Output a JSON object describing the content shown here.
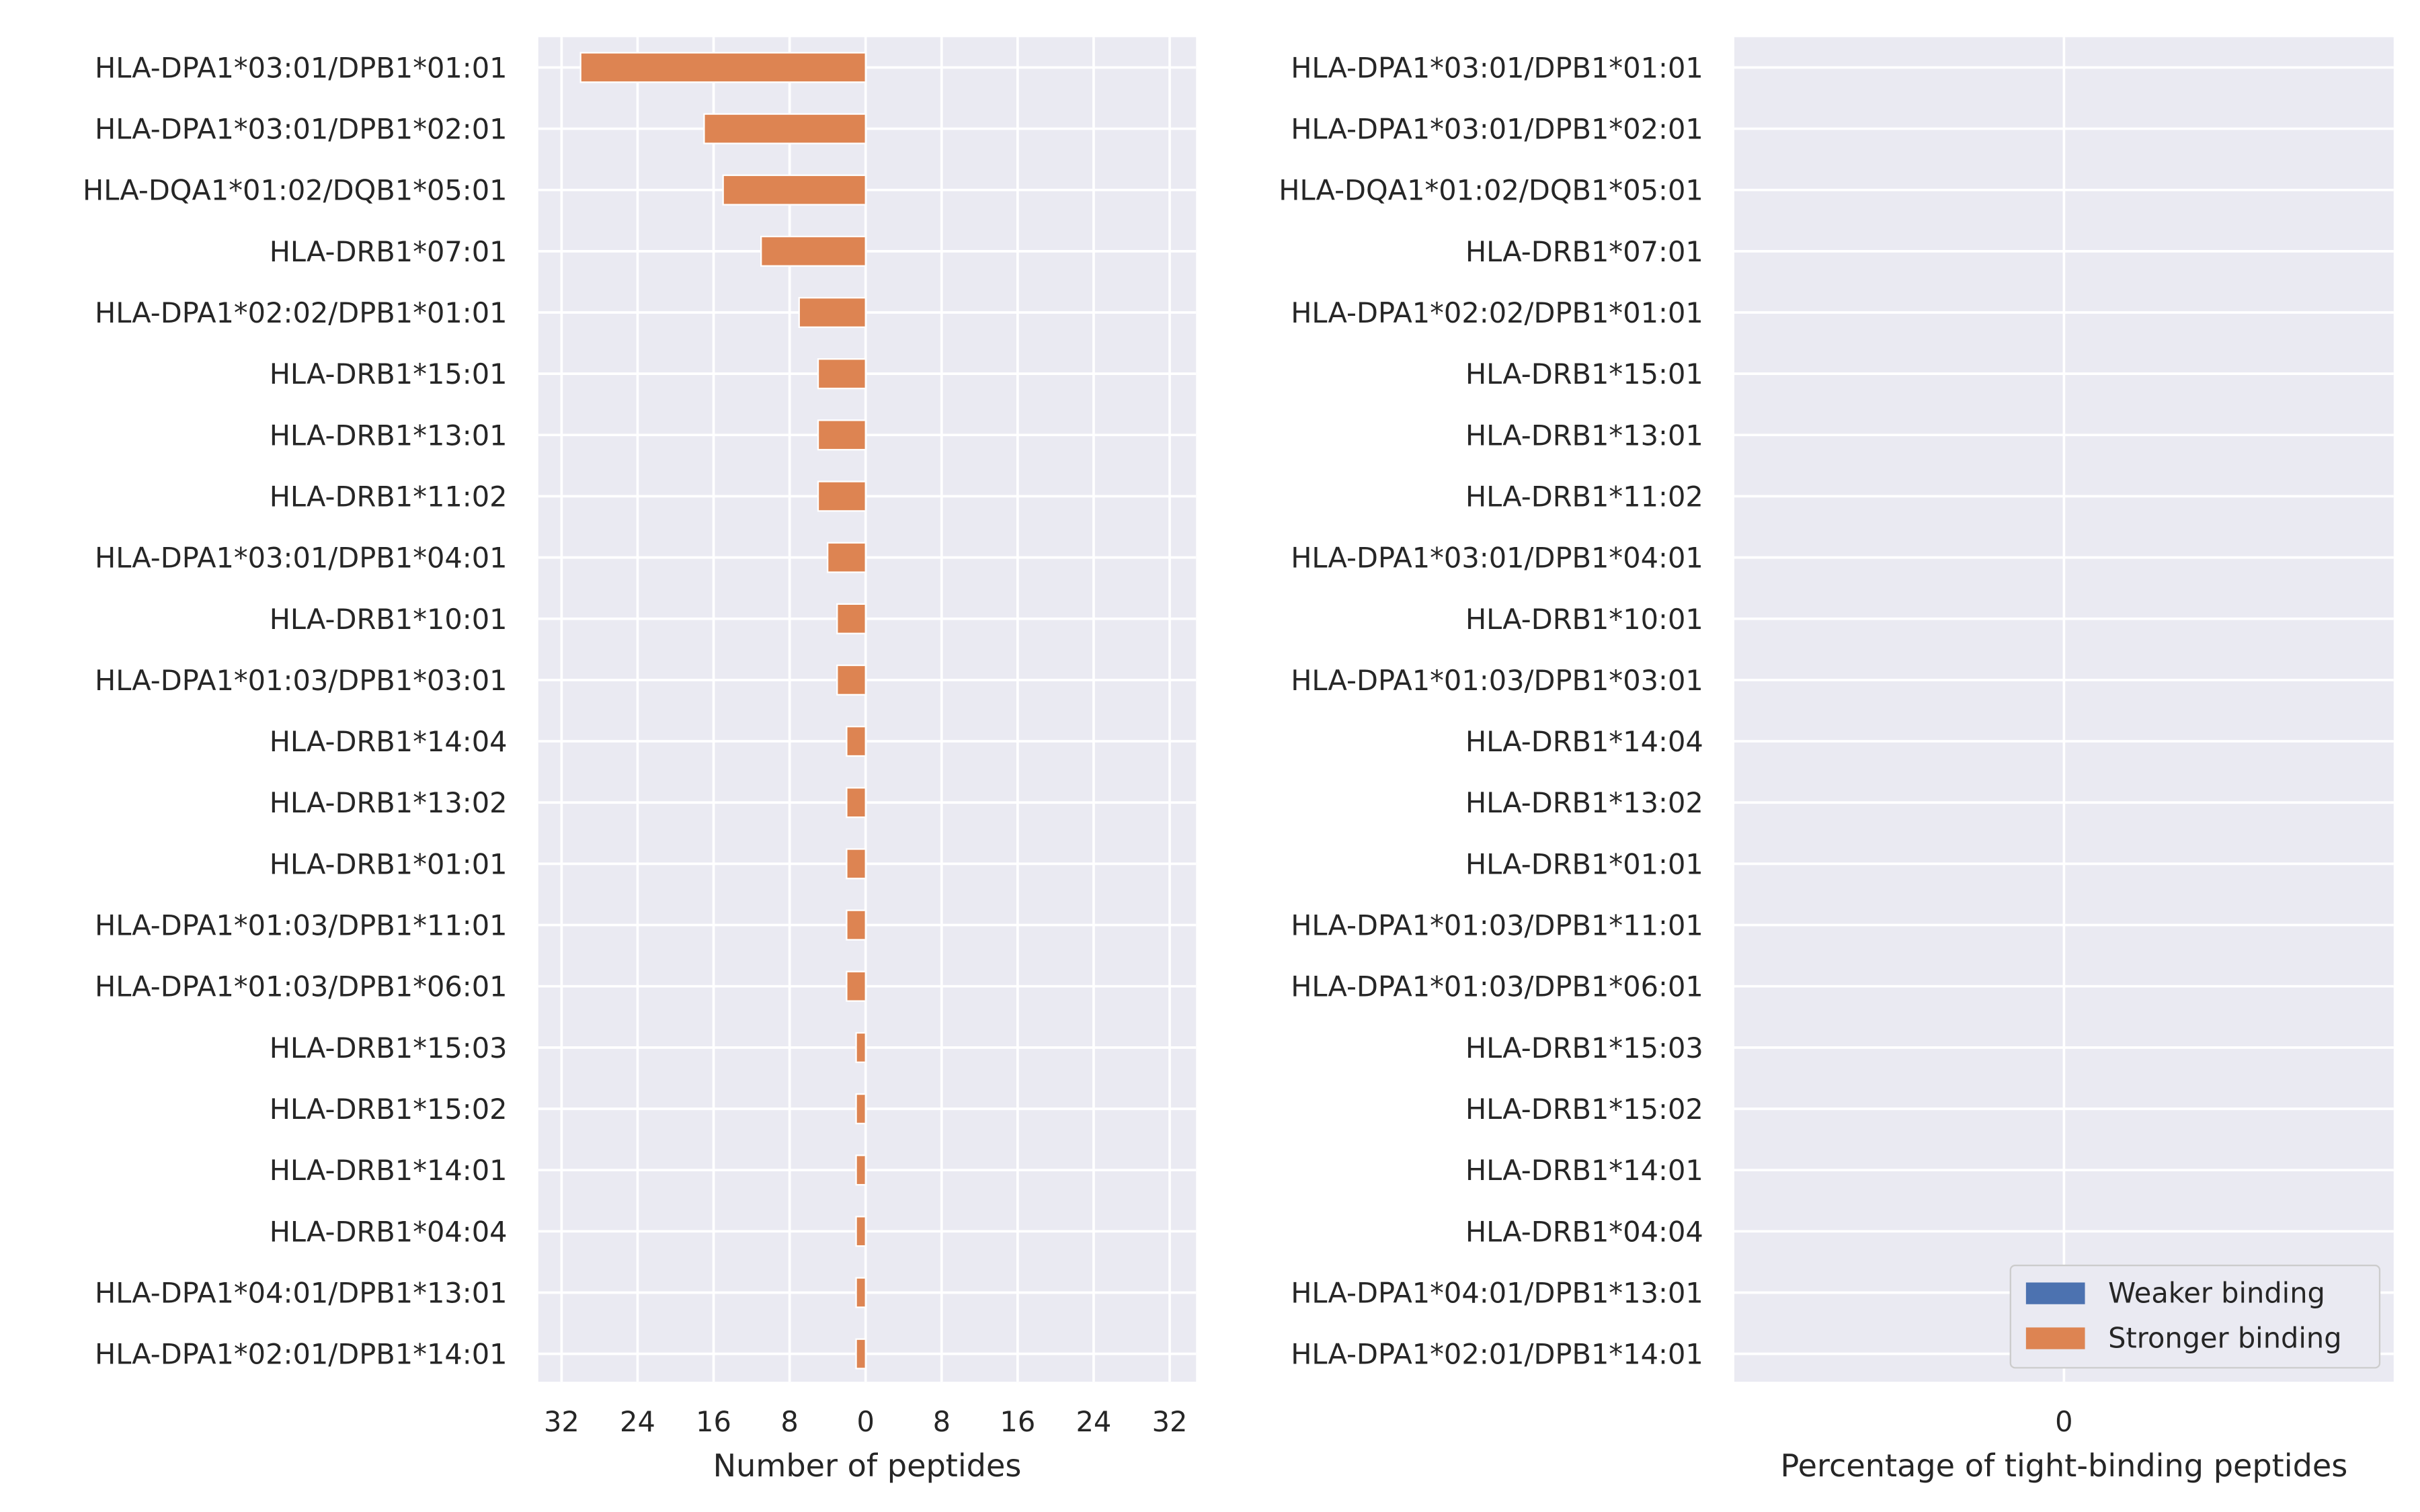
{
  "chart_data": [
    {
      "type": "bar",
      "orientation": "horizontal",
      "categories": [
        "HLA-DPA1*03:01/DPB1*01:01",
        "HLA-DPA1*03:01/DPB1*02:01",
        "HLA-DQA1*01:02/DQB1*05:01",
        "HLA-DRB1*07:01",
        "HLA-DPA1*02:02/DPB1*01:01",
        "HLA-DRB1*15:01",
        "HLA-DRB1*13:01",
        "HLA-DRB1*11:02",
        "HLA-DPA1*03:01/DPB1*04:01",
        "HLA-DRB1*10:01",
        "HLA-DPA1*01:03/DPB1*03:01",
        "HLA-DRB1*14:04",
        "HLA-DRB1*13:02",
        "HLA-DRB1*01:01",
        "HLA-DPA1*01:03/DPB1*11:01",
        "HLA-DPA1*01:03/DPB1*06:01",
        "HLA-DRB1*15:03",
        "HLA-DRB1*15:02",
        "HLA-DRB1*14:01",
        "HLA-DRB1*04:04",
        "HLA-DPA1*04:01/DPB1*13:01",
        "HLA-DPA1*02:01/DPB1*14:01"
      ],
      "series": [
        {
          "name": "Weaker binding",
          "color": "#4c72b0",
          "values": [
            0,
            0,
            0,
            0,
            0,
            0,
            0,
            0,
            0,
            0,
            0,
            0,
            0,
            0,
            0,
            0,
            0,
            0,
            0,
            0,
            0,
            0
          ]
        },
        {
          "name": "Stronger binding",
          "color": "#dd8452",
          "direction": "left",
          "values": [
            30,
            17,
            15,
            11,
            7,
            5,
            5,
            5,
            4,
            3,
            3,
            2,
            2,
            2,
            2,
            2,
            1,
            1,
            1,
            1,
            1,
            1
          ]
        }
      ],
      "xticks": [
        "32",
        "24",
        "16",
        "8",
        "0",
        "8",
        "16",
        "24",
        "32"
      ],
      "xlim": [
        -35,
        35
      ],
      "xlabel": "Number of peptides",
      "ylabel": "",
      "title": "",
      "grid": true
    },
    {
      "type": "bar",
      "orientation": "horizontal",
      "categories": [
        "HLA-DPA1*03:01/DPB1*01:01",
        "HLA-DPA1*03:01/DPB1*02:01",
        "HLA-DQA1*01:02/DQB1*05:01",
        "HLA-DRB1*07:01",
        "HLA-DPA1*02:02/DPB1*01:01",
        "HLA-DRB1*15:01",
        "HLA-DRB1*13:01",
        "HLA-DRB1*11:02",
        "HLA-DPA1*03:01/DPB1*04:01",
        "HLA-DRB1*10:01",
        "HLA-DPA1*01:03/DPB1*03:01",
        "HLA-DRB1*14:04",
        "HLA-DRB1*13:02",
        "HLA-DRB1*01:01",
        "HLA-DPA1*01:03/DPB1*11:01",
        "HLA-DPA1*01:03/DPB1*06:01",
        "HLA-DRB1*15:03",
        "HLA-DRB1*15:02",
        "HLA-DRB1*14:01",
        "HLA-DRB1*04:04",
        "HLA-DPA1*04:01/DPB1*13:01",
        "HLA-DPA1*02:01/DPB1*14:01"
      ],
      "series": [
        {
          "name": "Weaker binding",
          "color": "#4c72b0",
          "values": [
            0,
            0,
            0,
            0,
            0,
            0,
            0,
            0,
            0,
            0,
            0,
            0,
            0,
            0,
            0,
            0,
            0,
            0,
            0,
            0,
            0,
            0
          ]
        },
        {
          "name": "Stronger binding",
          "color": "#dd8452",
          "values": [
            0,
            0,
            0,
            0,
            0,
            0,
            0,
            0,
            0,
            0,
            0,
            0,
            0,
            0,
            0,
            0,
            0,
            0,
            0,
            0,
            0,
            0
          ]
        }
      ],
      "xticks": [
        "0"
      ],
      "xlim": [
        -1,
        1
      ],
      "xlabel": "Percentage of tight-binding peptides",
      "ylabel": "",
      "title": "",
      "grid": true,
      "legend": {
        "position": "lower-right",
        "entries": [
          "Weaker binding",
          "Stronger binding"
        ]
      }
    }
  ],
  "style": {
    "panel_background": "#eaeaf2",
    "grid_color": "#ffffff",
    "text_color": "#262626"
  }
}
